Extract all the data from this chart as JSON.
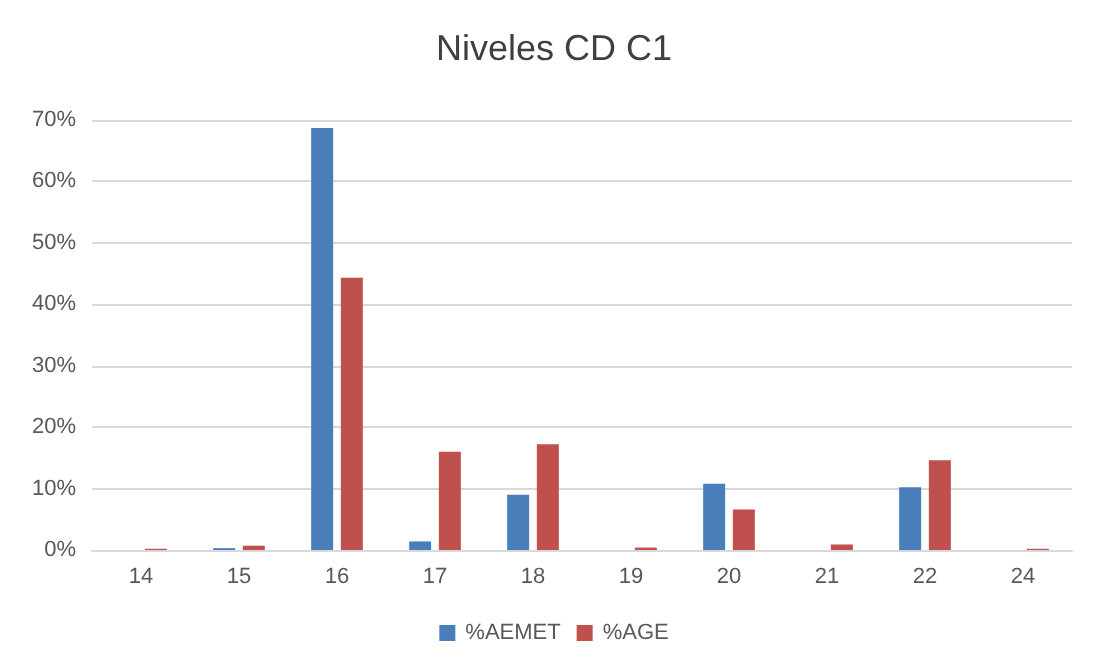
{
  "chart_data": {
    "type": "bar",
    "title": "Niveles CD C1",
    "categories": [
      "14",
      "15",
      "16",
      "17",
      "18",
      "19",
      "20",
      "21",
      "22",
      "24"
    ],
    "series": [
      {
        "name": "%AEMET",
        "color": "#4a7ebb",
        "values": [
          0,
          0.3,
          68.7,
          1.4,
          9,
          0,
          10.8,
          0,
          10.2,
          0
        ]
      },
      {
        "name": "%AGE",
        "color": "#c0504d",
        "values": [
          0.2,
          0.7,
          44.3,
          16,
          17.2,
          0.4,
          6.6,
          0.9,
          14.6,
          0.2
        ]
      }
    ],
    "ylim": [
      0,
      70
    ],
    "yticks": [
      {
        "value": 0,
        "label": "0%"
      },
      {
        "value": 10,
        "label": "10%"
      },
      {
        "value": 20,
        "label": "20%"
      },
      {
        "value": 30,
        "label": "30%"
      },
      {
        "value": 40,
        "label": "40%"
      },
      {
        "value": 50,
        "label": "50%"
      },
      {
        "value": 60,
        "label": "60%"
      },
      {
        "value": 70,
        "label": "70%"
      }
    ],
    "grid": "y",
    "legend": "bottom"
  }
}
